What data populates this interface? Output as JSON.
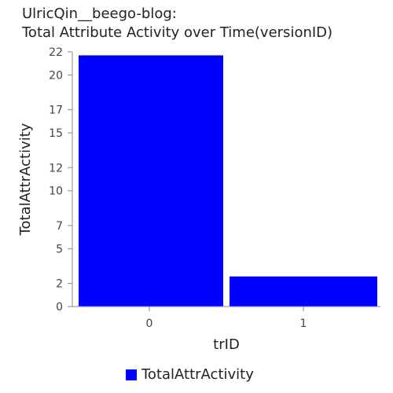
{
  "title_line1": "UlricQin__beego-blog:",
  "title_line2": "Total Attribute Activity over Time(versionID)",
  "chart_data": {
    "type": "bar",
    "categories": [
      "0",
      "1"
    ],
    "series": [
      {
        "name": "TotalAttrActivity",
        "values": [
          21.7,
          2.6
        ],
        "color": "#0000ff"
      }
    ],
    "xlabel": "trID",
    "ylabel": "TotalAttrActivity",
    "ylim": [
      0,
      22
    ],
    "yticks": [
      0,
      2,
      5,
      7,
      10,
      12,
      15,
      17,
      20,
      22
    ],
    "grid": false,
    "legend_position": "bottom-center"
  },
  "legend": {
    "label": "TotalAttrActivity",
    "color": "#0000ff"
  }
}
